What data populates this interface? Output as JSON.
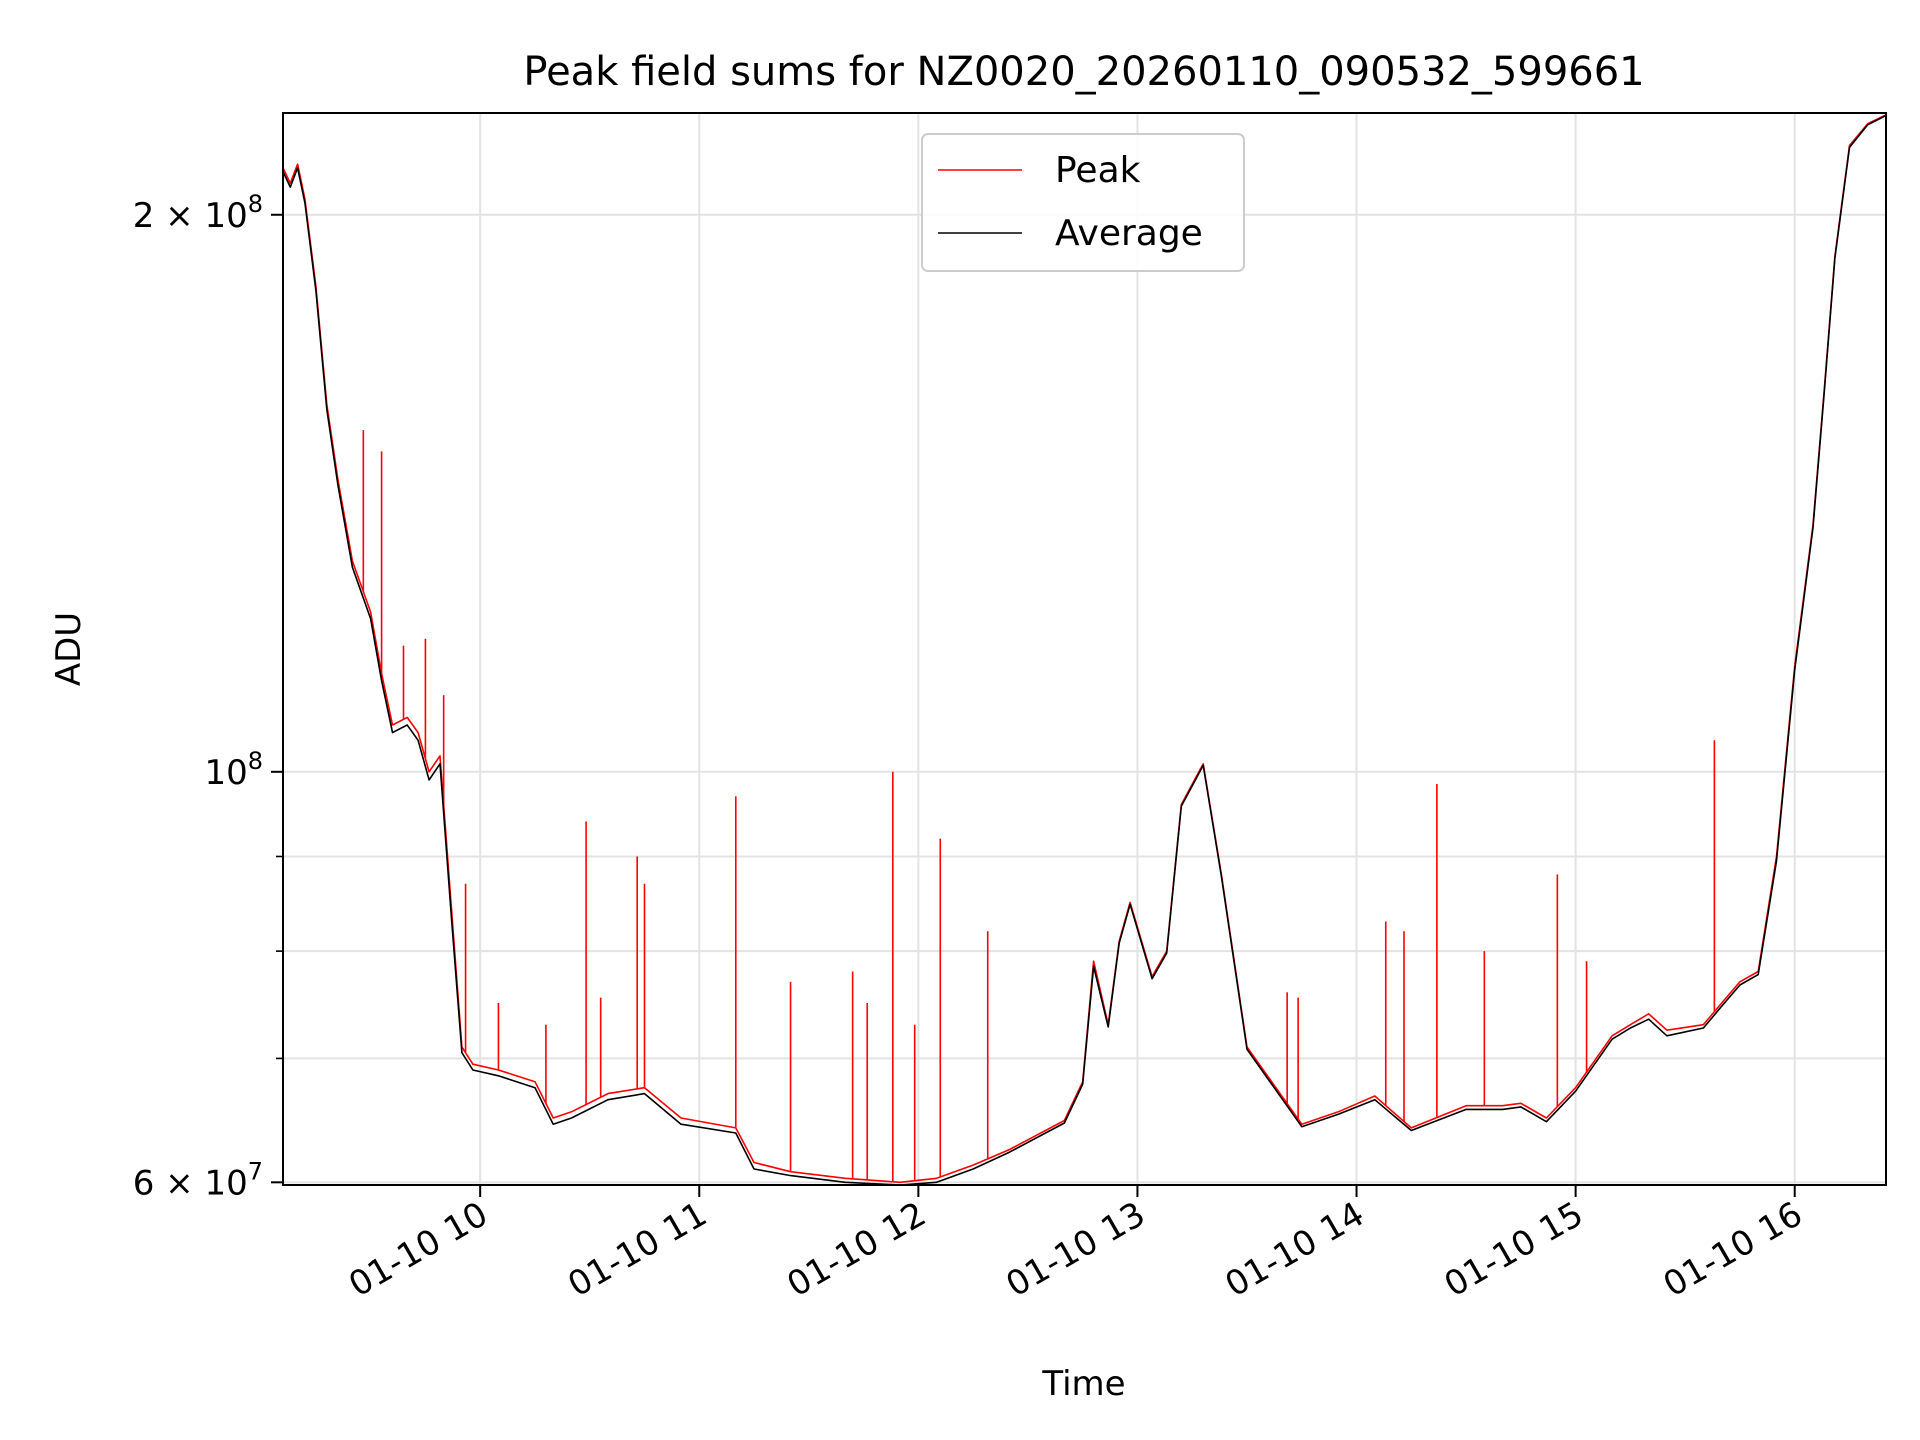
{
  "chart_data": {
    "type": "line",
    "title": "Peak field sums for NZ0020_20260110_090532_599661",
    "xlabel": "Time",
    "ylabel": "ADU",
    "yscale": "log",
    "grid": true,
    "legend_position": "top-center",
    "xlim": [
      "2026-01-10 09:06",
      "2026-01-10 16:25"
    ],
    "ylim": [
      59800000,
      227000000
    ],
    "x_ticks": [
      {
        "value": "2026-01-10 10:00",
        "label": "01-10 10"
      },
      {
        "value": "2026-01-10 11:00",
        "label": "01-10 11"
      },
      {
        "value": "2026-01-10 12:00",
        "label": "01-10 12"
      },
      {
        "value": "2026-01-10 13:00",
        "label": "01-10 13"
      },
      {
        "value": "2026-01-10 14:00",
        "label": "01-10 14"
      },
      {
        "value": "2026-01-10 15:00",
        "label": "01-10 15"
      },
      {
        "value": "2026-01-10 16:00",
        "label": "01-10 16"
      }
    ],
    "y_major_ticks": [
      {
        "value": 60000000,
        "mantissa": "6",
        "base": "10",
        "exp": "7"
      },
      {
        "value": 100000000,
        "mantissa": "",
        "base": "10",
        "exp": "8"
      },
      {
        "value": 200000000,
        "mantissa": "2",
        "base": "10",
        "exp": "8"
      }
    ],
    "y_minor_ticks": [
      70000000,
      80000000,
      90000000
    ],
    "series": [
      {
        "name": "Peak",
        "color": "#ff0000",
        "x": [
          "2026-01-10 09:06",
          "2026-01-10 09:08",
          "2026-01-10 09:10",
          "2026-01-10 09:12",
          "2026-01-10 09:15",
          "2026-01-10 09:18",
          "2026-01-10 09:21",
          "2026-01-10 09:25",
          "2026-01-10 09:30",
          "2026-01-10 09:33",
          "2026-01-10 09:36",
          "2026-01-10 09:40",
          "2026-01-10 09:43",
          "2026-01-10 09:46",
          "2026-01-10 09:49",
          "2026-01-10 09:52",
          "2026-01-10 09:55",
          "2026-01-10 09:58",
          "2026-01-10 10:05",
          "2026-01-10 10:15",
          "2026-01-10 10:20",
          "2026-01-10 10:25",
          "2026-01-10 10:35",
          "2026-01-10 10:45",
          "2026-01-10 10:55",
          "2026-01-10 11:10",
          "2026-01-10 11:15",
          "2026-01-10 11:25",
          "2026-01-10 11:40",
          "2026-01-10 11:55",
          "2026-01-10 12:05",
          "2026-01-10 12:15",
          "2026-01-10 12:25",
          "2026-01-10 12:40",
          "2026-01-10 12:45",
          "2026-01-10 12:48",
          "2026-01-10 12:52",
          "2026-01-10 12:55",
          "2026-01-10 12:58",
          "2026-01-10 13:04",
          "2026-01-10 13:08",
          "2026-01-10 13:12",
          "2026-01-10 13:18",
          "2026-01-10 13:23",
          "2026-01-10 13:30",
          "2026-01-10 13:45",
          "2026-01-10 13:55",
          "2026-01-10 14:05",
          "2026-01-10 14:15",
          "2026-01-10 14:30",
          "2026-01-10 14:40",
          "2026-01-10 14:45",
          "2026-01-10 14:52",
          "2026-01-10 15:00",
          "2026-01-10 15:10",
          "2026-01-10 15:15",
          "2026-01-10 15:20",
          "2026-01-10 15:25",
          "2026-01-10 15:35",
          "2026-01-10 15:40",
          "2026-01-10 15:45",
          "2026-01-10 15:50",
          "2026-01-10 15:55",
          "2026-01-10 16:00",
          "2026-01-10 16:05",
          "2026-01-10 16:08",
          "2026-01-10 16:11",
          "2026-01-10 16:15",
          "2026-01-10 16:20",
          "2026-01-10 16:25"
        ],
        "y": [
          212000000,
          208000000,
          213000000,
          204000000,
          183000000,
          158000000,
          144000000,
          130000000,
          122000000,
          113000000,
          106000000,
          107000000,
          105000000,
          100000000,
          102000000,
          85000000,
          71000000,
          69500000,
          69000000,
          68000000,
          65000000,
          65500000,
          67000000,
          67500000,
          65000000,
          64200000,
          61500000,
          60800000,
          60300000,
          60000000,
          60300000,
          61300000,
          62500000,
          64800000,
          68000000,
          79000000,
          73000000,
          81000000,
          85000000,
          77500000,
          80000000,
          96000000,
          101000000,
          88000000,
          71000000,
          64500000,
          65500000,
          66800000,
          64200000,
          66000000,
          66000000,
          66200000,
          65000000,
          67500000,
          72000000,
          73000000,
          74000000,
          72500000,
          73000000,
          75000000,
          77000000,
          78000000,
          90000000,
          114000000,
          136000000,
          160000000,
          190000000,
          218000000,
          224000000,
          226500000
        ],
        "spikes": [
          {
            "x": "2026-01-10 09:28",
            "y": 153000000
          },
          {
            "x": "2026-01-10 09:33",
            "y": 149000000
          },
          {
            "x": "2026-01-10 09:39",
            "y": 117000000
          },
          {
            "x": "2026-01-10 09:45",
            "y": 118000000
          },
          {
            "x": "2026-01-10 09:50",
            "y": 110000000
          },
          {
            "x": "2026-01-10 09:56",
            "y": 87000000
          },
          {
            "x": "2026-01-10 10:05",
            "y": 75000000
          },
          {
            "x": "2026-01-10 10:18",
            "y": 73000000
          },
          {
            "x": "2026-01-10 10:29",
            "y": 94000000
          },
          {
            "x": "2026-01-10 10:33",
            "y": 75500000
          },
          {
            "x": "2026-01-10 10:43",
            "y": 90000000
          },
          {
            "x": "2026-01-10 10:45",
            "y": 87000000
          },
          {
            "x": "2026-01-10 11:10",
            "y": 97000000
          },
          {
            "x": "2026-01-10 11:25",
            "y": 77000000
          },
          {
            "x": "2026-01-10 11:42",
            "y": 78000000
          },
          {
            "x": "2026-01-10 11:46",
            "y": 75000000
          },
          {
            "x": "2026-01-10 11:53",
            "y": 100000000
          },
          {
            "x": "2026-01-10 11:59",
            "y": 73000000
          },
          {
            "x": "2026-01-10 12:06",
            "y": 92000000
          },
          {
            "x": "2026-01-10 12:19",
            "y": 82000000
          },
          {
            "x": "2026-01-10 13:41",
            "y": 76000000
          },
          {
            "x": "2026-01-10 13:44",
            "y": 75500000
          },
          {
            "x": "2026-01-10 14:08",
            "y": 83000000
          },
          {
            "x": "2026-01-10 14:13",
            "y": 82000000
          },
          {
            "x": "2026-01-10 14:22",
            "y": 98500000
          },
          {
            "x": "2026-01-10 14:35",
            "y": 80000000
          },
          {
            "x": "2026-01-10 14:55",
            "y": 88000000
          },
          {
            "x": "2026-01-10 15:03",
            "y": 79000000
          },
          {
            "x": "2026-01-10 15:38",
            "y": 104000000
          }
        ]
      },
      {
        "name": "Average",
        "color": "#000000",
        "x": [
          "2026-01-10 09:06",
          "2026-01-10 09:08",
          "2026-01-10 09:10",
          "2026-01-10 09:12",
          "2026-01-10 09:15",
          "2026-01-10 09:18",
          "2026-01-10 09:21",
          "2026-01-10 09:25",
          "2026-01-10 09:30",
          "2026-01-10 09:33",
          "2026-01-10 09:36",
          "2026-01-10 09:40",
          "2026-01-10 09:43",
          "2026-01-10 09:46",
          "2026-01-10 09:49",
          "2026-01-10 09:52",
          "2026-01-10 09:55",
          "2026-01-10 09:58",
          "2026-01-10 10:05",
          "2026-01-10 10:15",
          "2026-01-10 10:20",
          "2026-01-10 10:25",
          "2026-01-10 10:35",
          "2026-01-10 10:45",
          "2026-01-10 10:55",
          "2026-01-10 11:10",
          "2026-01-10 11:15",
          "2026-01-10 11:25",
          "2026-01-10 11:40",
          "2026-01-10 11:55",
          "2026-01-10 12:05",
          "2026-01-10 12:15",
          "2026-01-10 12:25",
          "2026-01-10 12:40",
          "2026-01-10 12:45",
          "2026-01-10 12:48",
          "2026-01-10 12:52",
          "2026-01-10 12:55",
          "2026-01-10 12:58",
          "2026-01-10 13:04",
          "2026-01-10 13:08",
          "2026-01-10 13:12",
          "2026-01-10 13:18",
          "2026-01-10 13:23",
          "2026-01-10 13:30",
          "2026-01-10 13:45",
          "2026-01-10 13:55",
          "2026-01-10 14:05",
          "2026-01-10 14:15",
          "2026-01-10 14:30",
          "2026-01-10 14:40",
          "2026-01-10 14:45",
          "2026-01-10 14:52",
          "2026-01-10 15:00",
          "2026-01-10 15:10",
          "2026-01-10 15:15",
          "2026-01-10 15:20",
          "2026-01-10 15:25",
          "2026-01-10 15:35",
          "2026-01-10 15:40",
          "2026-01-10 15:45",
          "2026-01-10 15:50",
          "2026-01-10 15:55",
          "2026-01-10 16:00",
          "2026-01-10 16:05",
          "2026-01-10 16:08",
          "2026-01-10 16:11",
          "2026-01-10 16:15",
          "2026-01-10 16:20",
          "2026-01-10 16:25"
        ],
        "y": [
          211000000,
          207000000,
          212000000,
          203000000,
          182000000,
          157000000,
          143000000,
          129000000,
          121000000,
          112000000,
          105000000,
          106000000,
          104000000,
          99000000,
          101000000,
          84000000,
          70500000,
          69000000,
          68500000,
          67500000,
          64500000,
          65000000,
          66500000,
          67000000,
          64500000,
          63800000,
          61000000,
          60500000,
          60000000,
          59800000,
          60000000,
          61000000,
          62300000,
          64600000,
          67800000,
          78500000,
          72800000,
          80800000,
          84800000,
          77300000,
          79800000,
          95800000,
          100800000,
          87800000,
          70800000,
          64300000,
          65300000,
          66500000,
          64000000,
          65700000,
          65700000,
          65900000,
          64700000,
          67200000,
          71700000,
          72700000,
          73500000,
          72000000,
          72700000,
          74700000,
          76700000,
          77700000,
          89500000,
          113500000,
          135500000,
          159500000,
          189500000,
          217500000,
          223700000,
          226300000
        ]
      }
    ]
  }
}
